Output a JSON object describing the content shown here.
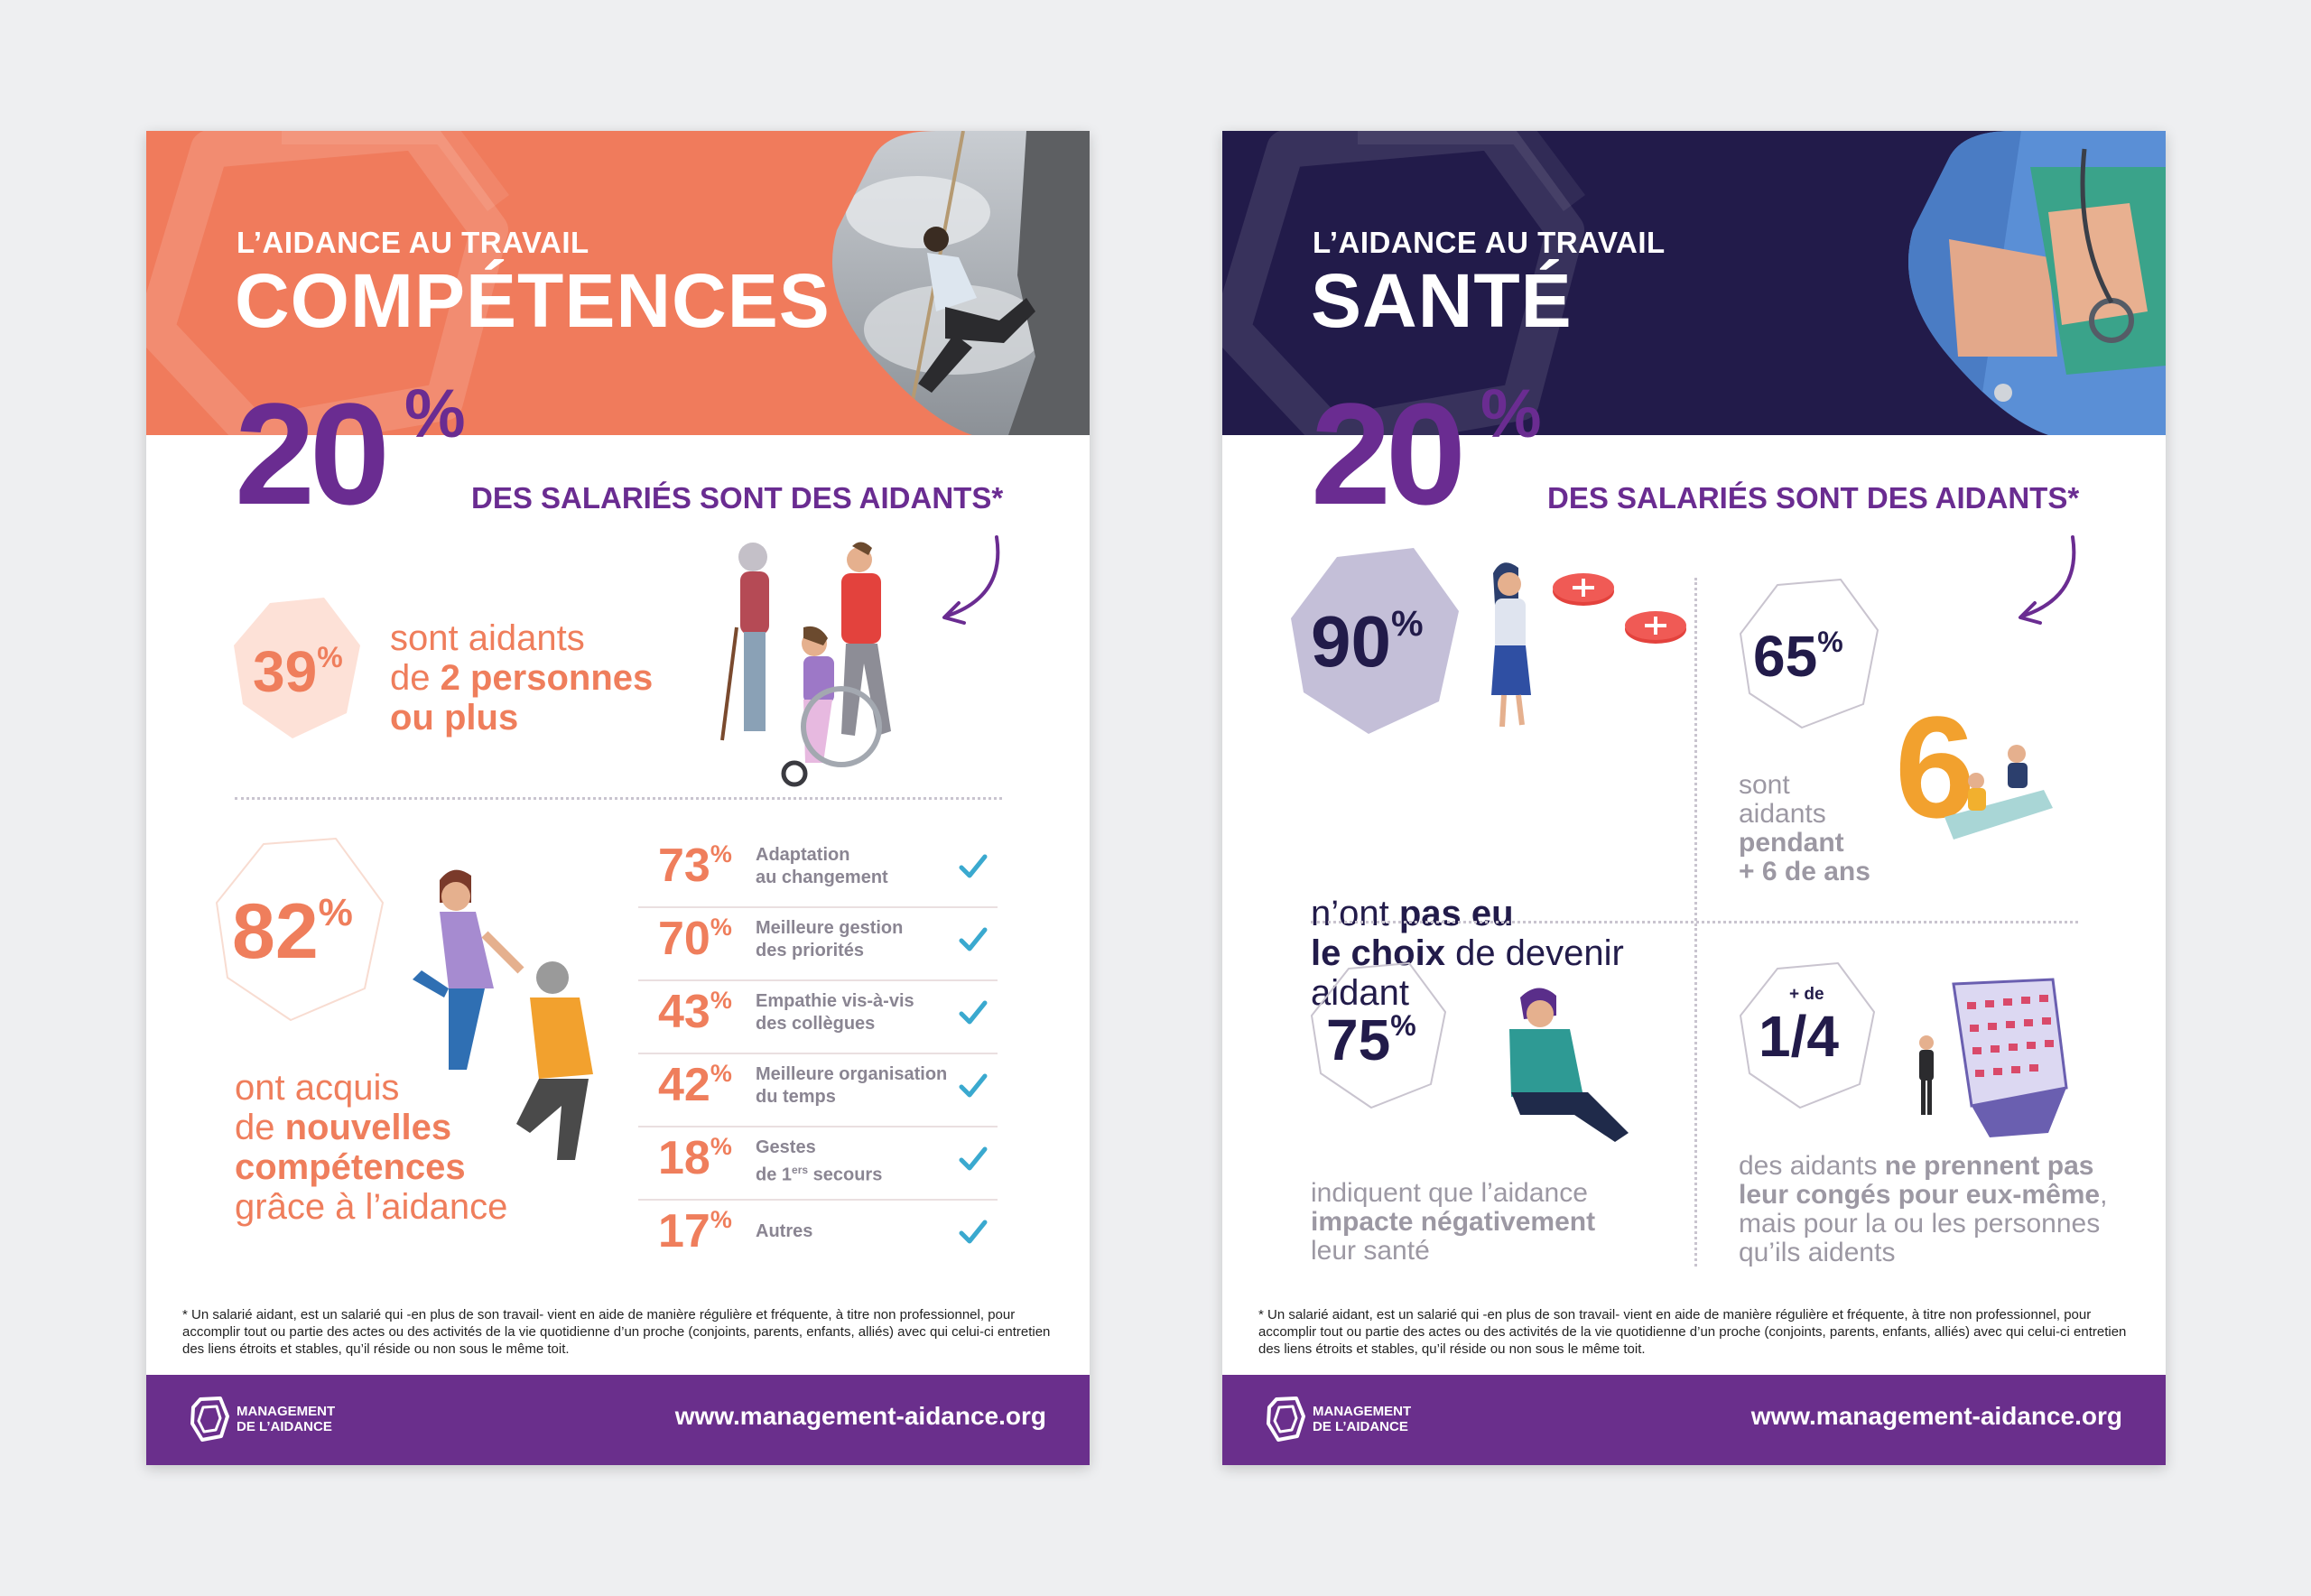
{
  "left": {
    "kicker": "L’AIDANCE AU TRAVAIL",
    "title": "COMPÉTENCES",
    "headline": {
      "value": "20",
      "sign": "%",
      "tagline": "DES SALARIÉS SONT DES AIDANTS*"
    },
    "stat1": {
      "value": "39",
      "sign": "%",
      "line1": "sont aidants",
      "line2a": "de ",
      "line2b": "2 personnes",
      "line3": "ou plus"
    },
    "stat2": {
      "value": "82",
      "sign": "%",
      "line1": "ont acquis",
      "line2a": "de ",
      "line2b": "nouvelles",
      "line3": "compétences",
      "line4": "grâce à l’aidance"
    },
    "skills": [
      {
        "value": "73",
        "sign": "%",
        "line1": "Adaptation",
        "line2": "au changement"
      },
      {
        "value": "70",
        "sign": "%",
        "line1": "Meilleure gestion",
        "line2": "des priorités"
      },
      {
        "value": "43",
        "sign": "%",
        "line1": "Empathie vis-à-vis",
        "line2": "des collègues"
      },
      {
        "value": "42",
        "sign": "%",
        "line1": "Meilleure organisation",
        "line2": "du temps"
      },
      {
        "value": "18",
        "sign": "%",
        "line1": "Gestes",
        "line2a": "de 1",
        "line2sup": "ers",
        "line2b": " secours"
      },
      {
        "value": "17",
        "sign": "%",
        "line1": "Autres",
        "line2": ""
      }
    ],
    "footnote": "* Un salarié aidant, est un salarié qui -en plus de son travail- vient en aide de manière régulière et fréquente, à titre non professionnel, pour accomplir tout ou partie des actes ou des activités de la vie quotidienne d’un proche (conjoints, parents, enfants, alliés) avec qui celui-ci entretien des liens étroits et stables, qu’il réside ou non sous le même toit.",
    "footer": {
      "brand1": "MANAGEMENT",
      "brand2": "DE L’AIDANCE",
      "url": "www.management-aidance.org"
    }
  },
  "right": {
    "kicker": "L’AIDANCE AU TRAVAIL",
    "title": "SANTÉ",
    "headline": {
      "value": "20",
      "sign": "%",
      "tagline": "DES SALARIÉS SONT DES AIDANTS*"
    },
    "q1": {
      "value": "90",
      "sign": "%",
      "line1a": "n’ont ",
      "line1b": "pas eu",
      "line2a": "le choix",
      "line2b": " de devenir",
      "line3": "aidant"
    },
    "q2": {
      "value": "65",
      "sign": "%",
      "line1": "sont",
      "line2": "aidants",
      "line3": "pendant",
      "line4": "+ 6 de ans"
    },
    "q3": {
      "value": "75",
      "sign": "%",
      "line1": "indiquent que l’aidance",
      "line2": "impacte négativement",
      "line3": "leur santé"
    },
    "q4": {
      "prefix": "+ de",
      "value": "1/4",
      "line1a": "des aidants ",
      "line1b": "ne prennent pas",
      "line2a": "leur congés pour eux-même",
      "line2b": ",",
      "line3": "mais pour la ou les personnes",
      "line4": "qu’ils aidents"
    },
    "footnote": "* Un salarié aidant, est un salarié qui -en plus de son travail- vient en aide de manière régulière et fréquente, à titre non professionnel, pour accomplir tout ou partie des actes ou des activités de la vie quotidienne d’un proche (conjoints, parents, enfants, alliés) avec qui celui-ci entretien des liens étroits et stables, qu’il réside ou non sous le même toit.",
    "footer": {
      "brand1": "MANAGEMENT",
      "brand2": "DE L’AIDANCE",
      "url": "www.management-aidance.org"
    }
  },
  "colors": {
    "orange": "#f07b5c",
    "navy": "#221b4a",
    "purple": "#6a2c91",
    "salmon_text": "#ef7e5c",
    "teal_check": "#3aa9cf"
  }
}
